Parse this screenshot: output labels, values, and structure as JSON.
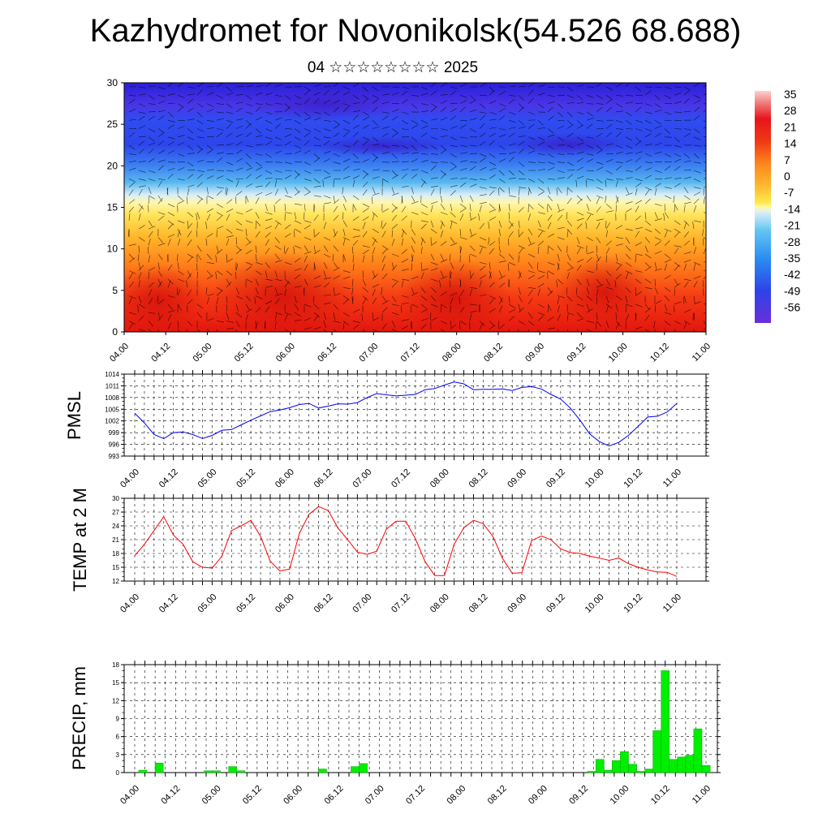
{
  "header": {
    "title": "Kazhydromet for Novonikolsk(54.526 68.688)",
    "subtitle": "04 ☆☆☆☆☆☆☆☆ 2025"
  },
  "time_labels": [
    "04.00",
    "04.12",
    "05.00",
    "05.12",
    "06.00",
    "06.12",
    "07.00",
    "07.12",
    "08.00",
    "08.12",
    "09.00",
    "09.12",
    "10.00",
    "10.12",
    "11.00"
  ],
  "chart_data": [
    {
      "type": "heatmap",
      "ylim": [
        0,
        30
      ],
      "yticks": [
        0,
        5,
        10,
        15,
        20,
        25,
        30
      ],
      "colorbar": {
        "labels": [
          "35",
          "28",
          "21",
          "14",
          "7",
          "0",
          "-7",
          "-14",
          "-21",
          "-28",
          "-35",
          "-42",
          "-49",
          "-56"
        ]
      }
    },
    {
      "type": "line",
      "ylabel": "PMSL",
      "ylim": [
        993,
        1014
      ],
      "yticks": [
        "1014",
        "1011",
        "1008",
        "1005",
        "1002",
        "999",
        "996",
        "993"
      ],
      "color": "#0000ff",
      "values": [
        1004,
        1001.5,
        998.5,
        997.5,
        999,
        999.2,
        998.5,
        997.5,
        998.3,
        999.6,
        999.8,
        1001,
        1002.2,
        1003.3,
        1004.4,
        1004.8,
        1005.4,
        1006.2,
        1006.5,
        1005.3,
        1005.8,
        1006.4,
        1006.3,
        1006.7,
        1008,
        1009,
        1008.7,
        1008.4,
        1008.6,
        1008.8,
        1010,
        1010.3,
        1011.2,
        1012,
        1011.5,
        1010,
        1010.1,
        1010.1,
        1010.2,
        1009.8,
        1010.6,
        1010.8,
        1010.2,
        1008.8,
        1007.6,
        1005.3,
        1002.2,
        998.7,
        996.7,
        995.6,
        996.5,
        998.3,
        1000.6,
        1003,
        1003.2,
        1004.3,
        1006.5
      ]
    },
    {
      "type": "line",
      "ylabel": "TEMP at 2 M",
      "ylim": [
        12,
        30
      ],
      "yticks": [
        "30",
        "27",
        "24",
        "21",
        "18",
        "15",
        "12"
      ],
      "color": "#ff0000",
      "values": [
        17.5,
        20,
        23,
        26,
        22,
        20,
        16.2,
        15,
        14.8,
        17.4,
        23,
        24,
        25.2,
        21.7,
        16.3,
        14.2,
        14.6,
        22.3,
        26.5,
        28.2,
        27.3,
        23.5,
        21,
        18.3,
        17.8,
        18.5,
        23.3,
        25,
        25,
        21.2,
        16.2,
        13.2,
        13.2,
        20,
        23.6,
        25.2,
        24.5,
        21.7,
        16.9,
        13.7,
        13.8,
        20.8,
        21.8,
        21,
        19,
        18.2,
        18,
        17.4,
        17,
        16.5,
        17,
        15.8,
        15,
        14.4,
        14,
        13.9,
        13
      ]
    },
    {
      "type": "bar",
      "ylabel": "PRECIP, mm",
      "ylim": [
        0,
        18
      ],
      "yticks": [
        "18",
        "15",
        "12",
        "9",
        "6",
        "3",
        "0"
      ],
      "color": "#00ee00",
      "values": [
        0,
        0.4,
        0,
        1.6,
        0,
        0,
        0,
        0,
        0,
        0.3,
        0.3,
        0,
        1,
        0.3,
        0,
        0,
        0,
        0,
        0,
        0,
        0,
        0,
        0,
        0.6,
        0,
        0,
        0,
        1,
        1.5,
        0,
        0,
        0,
        0,
        0,
        0,
        0,
        0,
        0,
        0,
        0,
        0,
        0,
        0,
        0,
        0,
        0,
        0,
        0,
        0,
        0,
        0,
        0,
        0,
        0,
        0,
        0,
        0.2,
        2.2,
        0.4,
        2,
        3.5,
        1.4,
        0.2,
        0.6,
        7,
        17,
        2.2,
        2.6,
        2.9,
        7.3,
        1.2
      ]
    }
  ]
}
